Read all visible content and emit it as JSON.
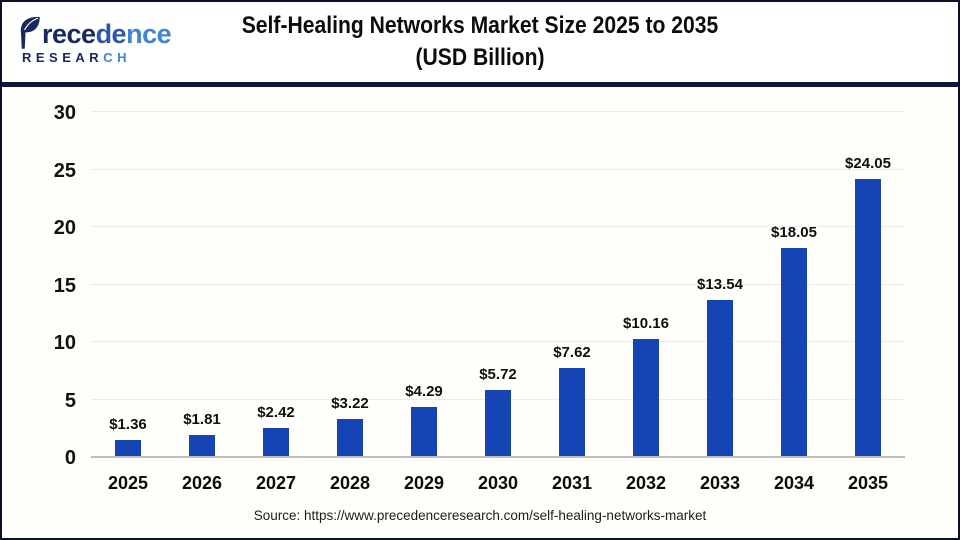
{
  "logo": {
    "brand": "Precedence",
    "word_segments": {
      "s1": "rece",
      "s2": "de",
      "s3": "nce"
    },
    "research_primary": "RESEAR",
    "research_accent": "CH"
  },
  "header": {
    "title_line1": "Self-Healing Networks Market Size 2025 to 2035",
    "title_line2": "(USD Billion)"
  },
  "source": {
    "text": "Source: https://www.precedenceresearch.com/self-healing-networks-market"
  },
  "colors": {
    "bar": "#1545b4",
    "divider": "#10173a",
    "grid": "#ececec",
    "axis_line": "#bdbdbd",
    "logo_navy": "#182861",
    "logo_blue": "#3e85d8"
  },
  "chart_data": {
    "type": "bar",
    "title": "Self-Healing Networks Market Size 2025 to 2035 (USD Billion)",
    "unit": "USD Billion",
    "categories": [
      "2025",
      "2026",
      "2027",
      "2028",
      "2029",
      "2030",
      "2031",
      "2032",
      "2033",
      "2034",
      "2035"
    ],
    "values": [
      1.36,
      1.81,
      2.42,
      3.22,
      4.29,
      5.72,
      7.62,
      10.16,
      13.54,
      18.05,
      24.05
    ],
    "value_labels": [
      "$1.36",
      "$1.81",
      "$2.42",
      "$3.22",
      "$4.29",
      "$5.72",
      "$7.62",
      "$10.16",
      "$13.54",
      "$18.05",
      "$24.05"
    ],
    "xlabel": "",
    "ylabel": "",
    "ylim": [
      0,
      30
    ],
    "yticks": [
      0,
      5,
      10,
      15,
      20,
      25,
      30
    ],
    "grid": true,
    "legend_position": "none"
  }
}
